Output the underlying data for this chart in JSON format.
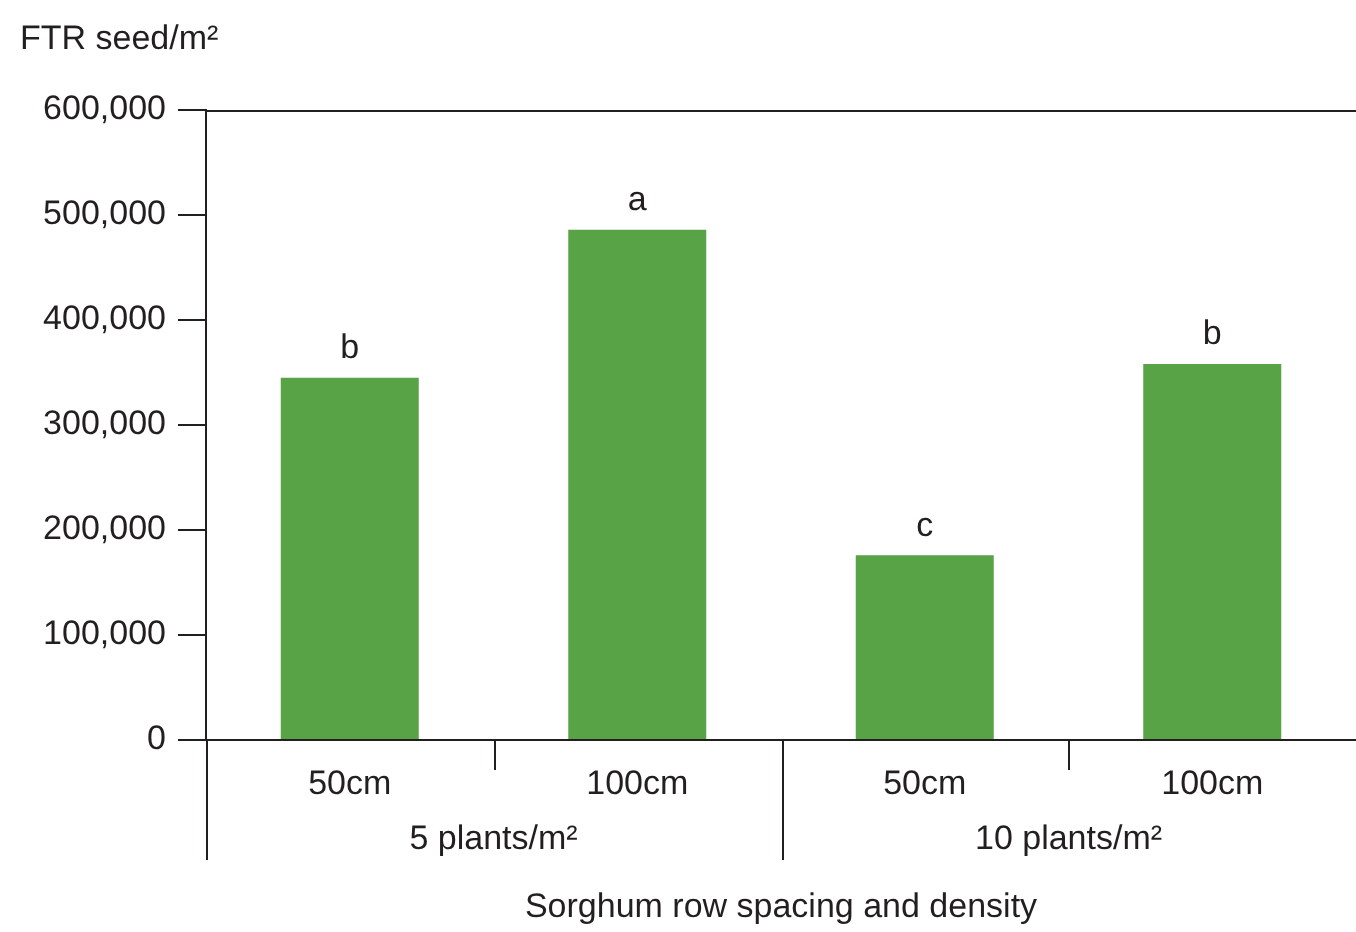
{
  "chart_data": {
    "type": "bar",
    "ylabel": "FTR seed/m²",
    "xlabel": "Sorghum row spacing and density",
    "categories": [
      "50cm",
      "100cm",
      "50cm",
      "100cm"
    ],
    "series": [
      {
        "color": "#57a346",
        "values": [
          345000,
          486000,
          176000,
          358000
        ],
        "value_labels": [
          "b",
          "a",
          "c",
          "b"
        ]
      }
    ],
    "ylim": [
      0,
      600000
    ],
    "yticks": [
      {
        "value": 0,
        "label": "0"
      },
      {
        "value": 100000,
        "label": "100,000"
      },
      {
        "value": 200000,
        "label": "200,000"
      },
      {
        "value": 300000,
        "label": "300,000"
      },
      {
        "value": 400000,
        "label": "400,000"
      },
      {
        "value": 500000,
        "label": "500,000"
      },
      {
        "value": 600000,
        "label": "600,000"
      }
    ],
    "annotations": [
      "5 plants/m²",
      "10 plants/m²"
    ],
    "grid": false,
    "legend": false
  }
}
